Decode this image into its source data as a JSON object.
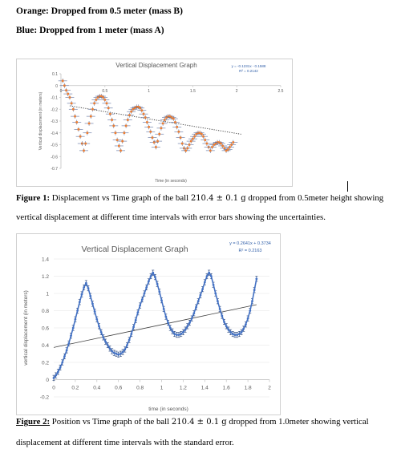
{
  "legend_notes": {
    "orange": "Orange: Dropped from 0.5 meter (mass B)",
    "blue": "Blue: Dropped from 1 meter (mass A)"
  },
  "chart_data": [
    {
      "type": "scatter",
      "title": "Vertical Displacement Graph",
      "xlabel": "Time (in seconds)",
      "ylabel": "Vertical displacement (in meters)",
      "equation": "y = -0.1231x - 0.1588",
      "r_squared": "R² = 0.2142",
      "xlim": [
        0,
        2.5
      ],
      "ylim": [
        -0.7,
        0.1
      ],
      "x_ticks": [
        "0",
        "0.5",
        "1",
        "1.5",
        "2",
        "2.5"
      ],
      "y_ticks": [
        "0.1",
        "0",
        "-0.1",
        "-0.2",
        "-0.3",
        "-0.4",
        "-0.5",
        "-0.6",
        "-0.7"
      ],
      "point_color": "#ED7D31",
      "errorbar_color": "#5B6F9E",
      "trendline": {
        "slope": -0.1231,
        "intercept": -0.1588,
        "style": "dotted",
        "color": "#444444"
      },
      "x_error": 0.05,
      "y_error": 0.02,
      "x": [
        0.02,
        0.04,
        0.06,
        0.08,
        0.1,
        0.12,
        0.14,
        0.16,
        0.18,
        0.2,
        0.22,
        0.24,
        0.26,
        0.28,
        0.3,
        0.32,
        0.34,
        0.36,
        0.38,
        0.4,
        0.42,
        0.44,
        0.46,
        0.48,
        0.5,
        0.52,
        0.54,
        0.56,
        0.58,
        0.6,
        0.62,
        0.64,
        0.66,
        0.68,
        0.7,
        0.72,
        0.74,
        0.76,
        0.78,
        0.8,
        0.82,
        0.84,
        0.86,
        0.88,
        0.9,
        0.92,
        0.94,
        0.96,
        0.98,
        1.0,
        1.02,
        1.04,
        1.06,
        1.08,
        1.1,
        1.12,
        1.14,
        1.16,
        1.18,
        1.2,
        1.22,
        1.24,
        1.26,
        1.28,
        1.3,
        1.32,
        1.34,
        1.36,
        1.38,
        1.4,
        1.42,
        1.44,
        1.46,
        1.48,
        1.5,
        1.52,
        1.54,
        1.56,
        1.58,
        1.6,
        1.62,
        1.64,
        1.66,
        1.68,
        1.7,
        1.72,
        1.74,
        1.76,
        1.78,
        1.8,
        1.82,
        1.84,
        1.86,
        1.88,
        1.9,
        1.92,
        1.94,
        1.96
      ],
      "y": [
        0.04,
        0.0,
        -0.04,
        -0.07,
        -0.1,
        -0.15,
        -0.2,
        -0.26,
        -0.31,
        -0.37,
        -0.43,
        -0.49,
        -0.55,
        -0.49,
        -0.4,
        -0.32,
        -0.26,
        -0.2,
        -0.15,
        -0.12,
        -0.1,
        -0.09,
        -0.09,
        -0.1,
        -0.12,
        -0.15,
        -0.19,
        -0.24,
        -0.29,
        -0.34,
        -0.4,
        -0.46,
        -0.51,
        -0.55,
        -0.47,
        -0.4,
        -0.34,
        -0.29,
        -0.25,
        -0.22,
        -0.2,
        -0.19,
        -0.18,
        -0.18,
        -0.19,
        -0.21,
        -0.24,
        -0.27,
        -0.31,
        -0.35,
        -0.39,
        -0.44,
        -0.48,
        -0.52,
        -0.47,
        -0.41,
        -0.36,
        -0.32,
        -0.29,
        -0.27,
        -0.26,
        -0.26,
        -0.27,
        -0.28,
        -0.31,
        -0.35,
        -0.39,
        -0.44,
        -0.49,
        -0.53,
        -0.55,
        -0.53,
        -0.5,
        -0.47,
        -0.45,
        -0.43,
        -0.41,
        -0.4,
        -0.4,
        -0.41,
        -0.43,
        -0.46,
        -0.49,
        -0.52,
        -0.55,
        -0.52,
        -0.5,
        -0.49,
        -0.48,
        -0.48,
        -0.49,
        -0.51,
        -0.53,
        -0.55,
        -0.54,
        -0.52,
        -0.5,
        -0.48
      ]
    },
    {
      "type": "line",
      "title": "Vertical Displacement Graph",
      "xlabel": "time (in seconds)",
      "ylabel": "vertical displacement (in meters)",
      "equation": "y = 0.2641x + 0.3734",
      "r_squared": "R² = 0.2163",
      "xlim": [
        0,
        2
      ],
      "ylim": [
        -0.2,
        1.4
      ],
      "x_ticks": [
        "0",
        "0.2",
        "0.4",
        "0.6",
        "0.8",
        "1",
        "1.2",
        "1.4",
        "1.6",
        "1.8",
        "2"
      ],
      "y_ticks": [
        "1.4",
        "1.2",
        "1",
        "0.8",
        "0.6",
        "0.4",
        "0.2",
        "0",
        "-0.2"
      ],
      "line_color": "#4472C4",
      "trendline": {
        "slope": 0.2641,
        "intercept": 0.3734,
        "style": "solid",
        "color": "#404040"
      },
      "y_error": 0.03,
      "x": [
        0.0,
        0.02,
        0.04,
        0.06,
        0.08,
        0.1,
        0.12,
        0.14,
        0.16,
        0.18,
        0.2,
        0.22,
        0.24,
        0.26,
        0.28,
        0.3,
        0.32,
        0.34,
        0.36,
        0.38,
        0.4,
        0.42,
        0.44,
        0.46,
        0.48,
        0.5,
        0.52,
        0.54,
        0.56,
        0.58,
        0.6,
        0.62,
        0.64,
        0.66,
        0.68,
        0.7,
        0.72,
        0.74,
        0.76,
        0.78,
        0.8,
        0.82,
        0.84,
        0.86,
        0.88,
        0.9,
        0.92,
        0.94,
        0.96,
        0.98,
        1.0,
        1.02,
        1.04,
        1.06,
        1.08,
        1.1,
        1.12,
        1.14,
        1.16,
        1.18,
        1.2,
        1.22,
        1.24,
        1.26,
        1.28,
        1.3,
        1.32,
        1.34,
        1.36,
        1.38,
        1.4,
        1.42,
        1.44,
        1.46,
        1.48,
        1.5,
        1.52,
        1.54,
        1.56,
        1.58,
        1.6,
        1.62,
        1.64,
        1.66,
        1.68,
        1.7,
        1.72,
        1.74,
        1.76,
        1.78,
        1.8,
        1.82,
        1.84,
        1.86,
        1.88
      ],
      "y": [
        0.02,
        0.05,
        0.09,
        0.14,
        0.2,
        0.27,
        0.34,
        0.42,
        0.51,
        0.6,
        0.7,
        0.8,
        0.9,
        0.99,
        1.07,
        1.12,
        1.06,
        0.97,
        0.88,
        0.79,
        0.7,
        0.62,
        0.55,
        0.49,
        0.44,
        0.4,
        0.36,
        0.33,
        0.31,
        0.3,
        0.29,
        0.3,
        0.32,
        0.35,
        0.4,
        0.46,
        0.53,
        0.61,
        0.69,
        0.78,
        0.86,
        0.93,
        1.0,
        1.07,
        1.14,
        1.2,
        1.24,
        1.19,
        1.11,
        1.02,
        0.92,
        0.82,
        0.73,
        0.66,
        0.6,
        0.56,
        0.53,
        0.52,
        0.52,
        0.53,
        0.55,
        0.58,
        0.62,
        0.66,
        0.71,
        0.77,
        0.84,
        0.91,
        0.98,
        1.05,
        1.13,
        1.2,
        1.24,
        1.2,
        1.1,
        1.0,
        0.91,
        0.82,
        0.74,
        0.67,
        0.62,
        0.58,
        0.55,
        0.53,
        0.52,
        0.52,
        0.53,
        0.55,
        0.59,
        0.64,
        0.71,
        0.8,
        0.91,
        1.04,
        1.17
      ]
    }
  ],
  "captions": {
    "figure1": {
      "label": "Figure 1:",
      "text": " Displacement vs Time graph of the ball ",
      "measurement": "210.4 ± 0.1 g",
      "text_after": " dropped from 0.5meter height showing",
      "line2": "vertical displacement at different time intervals with error bars showing the uncertainties."
    },
    "figure2": {
      "label": "Figure 2:",
      "text": " Position vs Time graph of the ball ",
      "measurement": "210.4 ± 0.1 g",
      "text_after": " dropped from 1.0meter showing vertical",
      "line2": "displacement at different time intervals with the standard error."
    }
  }
}
